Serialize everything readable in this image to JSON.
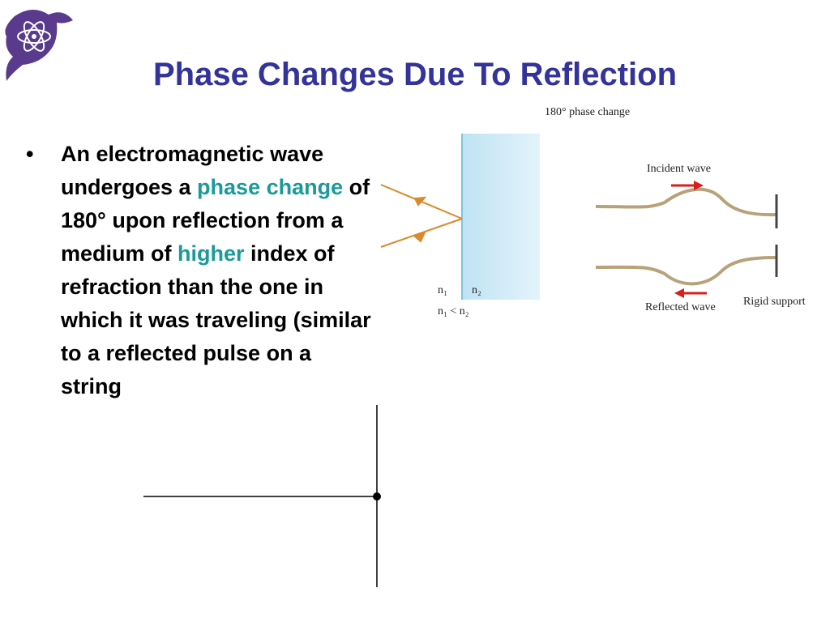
{
  "slide": {
    "title": "Phase Changes Due To Reflection",
    "bullet": {
      "segments": [
        {
          "text": "An electromagnetic wave undergoes a ",
          "highlight": false
        },
        {
          "text": "phase change",
          "highlight": true
        },
        {
          "text": " of 180° upon reflection from a medium of ",
          "highlight": false
        },
        {
          "text": "higher",
          "highlight": true
        },
        {
          "text": " index of refraction than the one in which it was traveling (similar to a reflected pulse on a string",
          "highlight": false
        }
      ]
    },
    "figure": {
      "caption": "180° phase change",
      "n1": "n₁",
      "n2": "n₂",
      "relation": "n₁ < n₂",
      "incident": "Incident wave",
      "reflected": "Reflected wave",
      "support": "Rigid support"
    }
  }
}
